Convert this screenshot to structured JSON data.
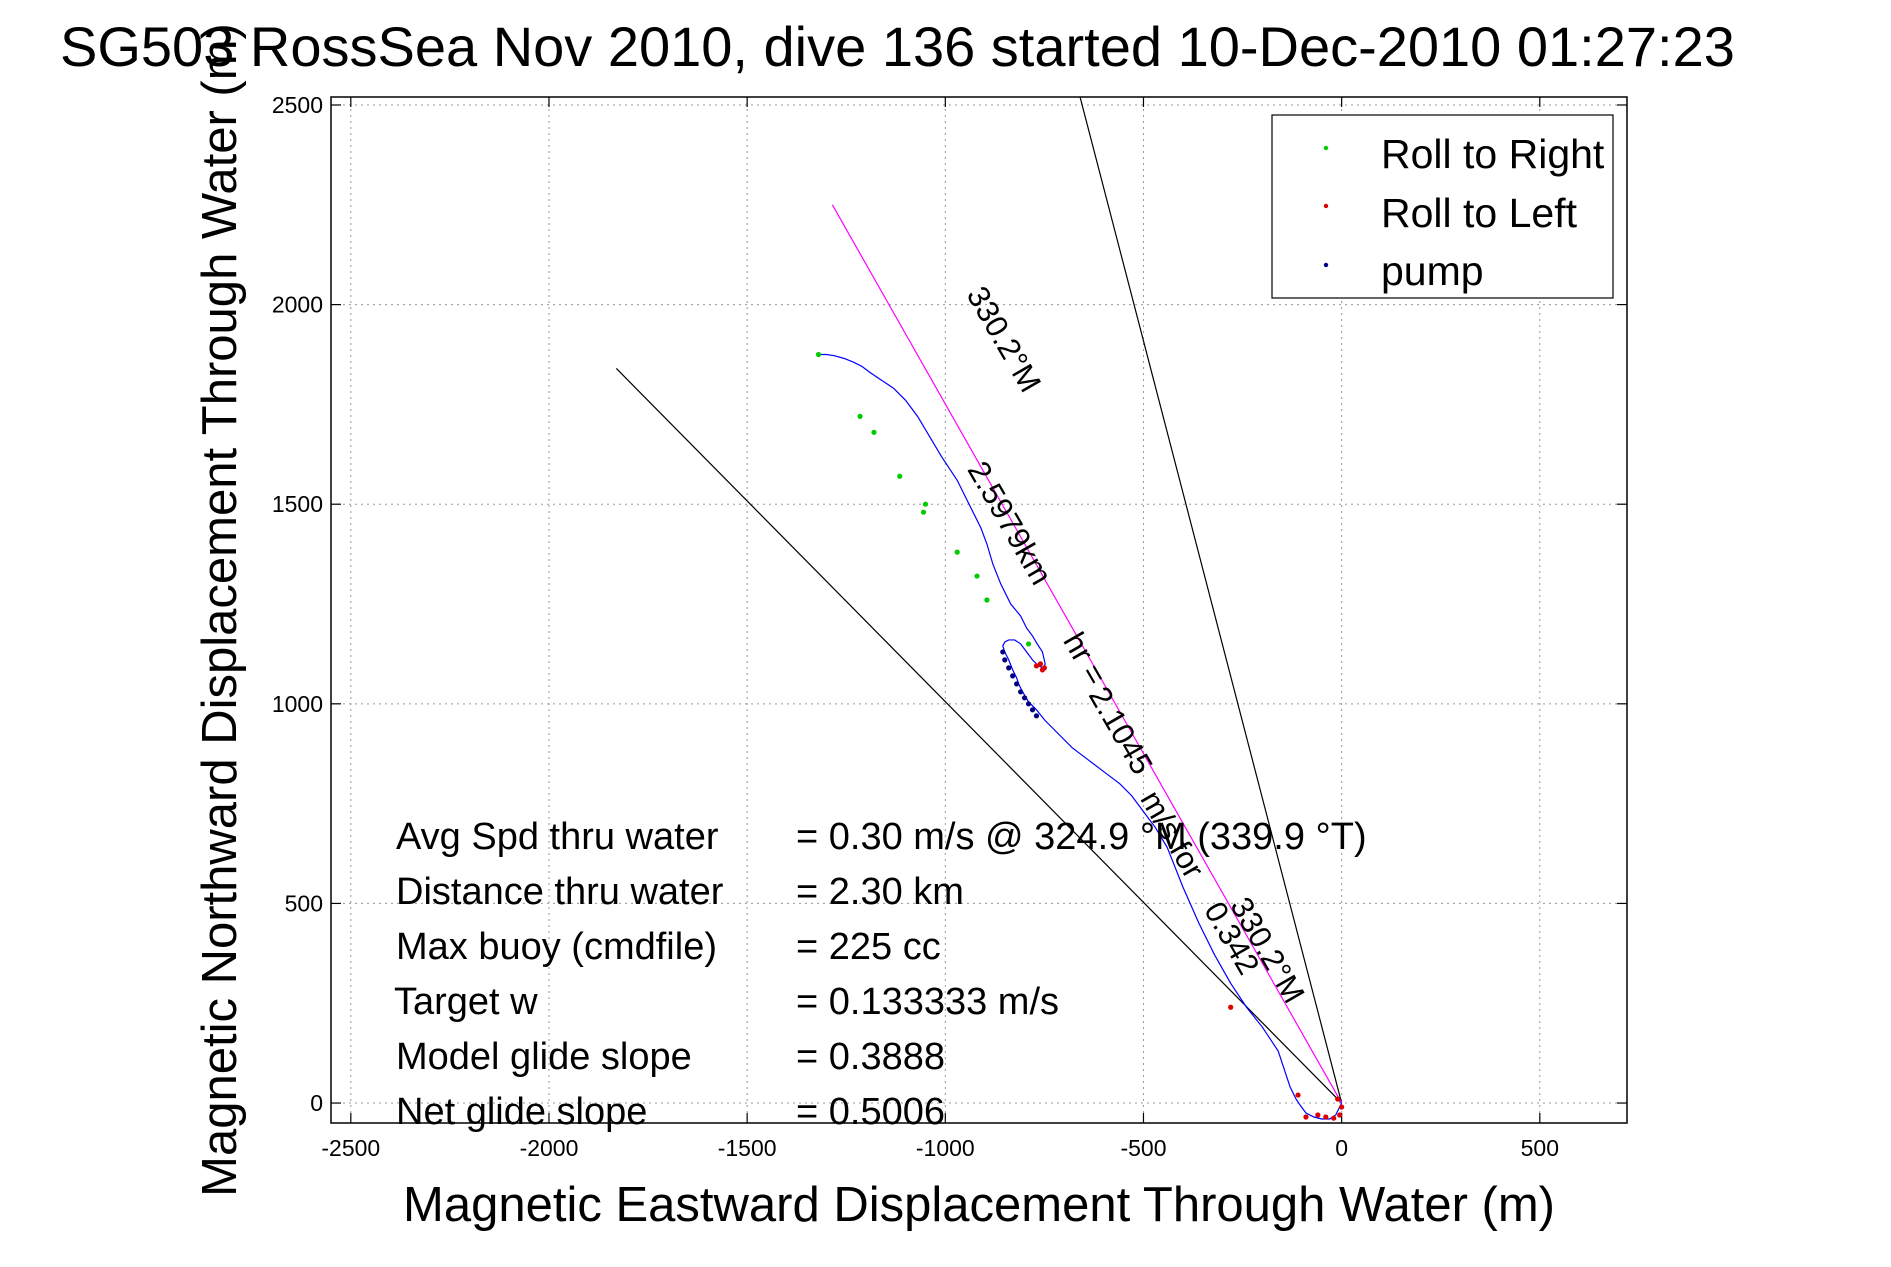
{
  "chart_data": {
    "type": "line",
    "title": "SG503 RossSea Nov 2010, dive 136 started 10-Dec-2010 01:27:23",
    "xlabel": "Magnetic Eastward Displacement Through Water (m)",
    "ylabel": "Magnetic Northward Displacement Through Water (m)",
    "xlim": [
      -2550,
      720
    ],
    "ylim": [
      -50,
      2520
    ],
    "x_ticks": [
      -2500,
      -2000,
      -1500,
      -1000,
      -500,
      0,
      500
    ],
    "y_ticks": [
      0,
      500,
      1000,
      1500,
      2000,
      2500
    ],
    "x_tick_labels": [
      "-2500",
      "-2000",
      "-1500",
      "-1000",
      "-500",
      "0",
      "500"
    ],
    "y_tick_labels": [
      "0",
      "500",
      "1000",
      "1500",
      "2000",
      "2500"
    ],
    "grid": true,
    "legend_position": "top-right",
    "legend": [
      {
        "label": "Roll to Right",
        "color": "#00cc00"
      },
      {
        "label": "Roll to Left",
        "color": "#dd0000"
      },
      {
        "label": "pump",
        "color": "#000080"
      }
    ],
    "track": {
      "color": "#0000ff",
      "x": [
        0,
        -15,
        -30,
        -50,
        -70,
        -90,
        -105,
        -115,
        -130,
        -160,
        -200,
        -240,
        -280,
        -320,
        -360,
        -400,
        -440,
        -470,
        -500,
        -530,
        -560,
        -600,
        -640,
        -680,
        -720,
        -750,
        -770,
        -790,
        -805,
        -815,
        -820,
        -830,
        -840,
        -850,
        -855,
        -850,
        -840,
        -825,
        -810,
        -795,
        -780,
        -765,
        -752,
        -748,
        -755,
        -768,
        -780,
        -795,
        -810,
        -835,
        -860,
        -880,
        -895,
        -910,
        -930,
        -950,
        -970,
        -990,
        -1010,
        -1040,
        -1070,
        -1100,
        -1130,
        -1160,
        -1190,
        -1210,
        -1230,
        -1255,
        -1280,
        -1300,
        -1320
      ],
      "y": [
        0,
        -30,
        -40,
        -40,
        -35,
        -25,
        -5,
        10,
        40,
        130,
        190,
        240,
        300,
        370,
        450,
        540,
        640,
        690,
        730,
        770,
        800,
        830,
        860,
        890,
        930,
        960,
        985,
        1005,
        1030,
        1050,
        1065,
        1085,
        1110,
        1130,
        1145,
        1155,
        1160,
        1160,
        1150,
        1130,
        1110,
        1095,
        1090,
        1100,
        1130,
        1150,
        1170,
        1190,
        1220,
        1250,
        1300,
        1350,
        1400,
        1440,
        1480,
        1520,
        1560,
        1590,
        1620,
        1670,
        1720,
        1760,
        1790,
        1810,
        1830,
        1845,
        1855,
        1865,
        1872,
        1875,
        1875
      ]
    },
    "roll_right_points": {
      "x": [
        -1320,
        -1215,
        -1115,
        -1055,
        -970,
        -895,
        -1180,
        -1050,
        -920,
        -790
      ],
      "y": [
        1875,
        1720,
        1570,
        1480,
        1380,
        1260,
        1680,
        1500,
        1320,
        1150
      ]
    },
    "roll_left_points": {
      "x": [
        -760,
        -750,
        -755,
        -770,
        -280,
        -110,
        -40,
        -20,
        -5,
        0,
        -10,
        -60,
        -90
      ],
      "y": [
        1100,
        1090,
        1085,
        1095,
        240,
        20,
        -35,
        -38,
        -30,
        -10,
        10,
        -30,
        -35
      ]
    },
    "pump_points": {
      "x": [
        -855,
        -850,
        -840,
        -830,
        -820,
        -810,
        -800,
        -790,
        -780,
        -770
      ],
      "y": [
        1130,
        1110,
        1090,
        1070,
        1050,
        1030,
        1015,
        1000,
        985,
        970
      ]
    },
    "reference_lines": [
      {
        "color": "#000000",
        "x": [
          0,
          -660
        ],
        "y": [
          0,
          2520
        ]
      },
      {
        "color": "#000000",
        "x": [
          0,
          -1830
        ],
        "y": [
          0,
          1840
        ]
      },
      {
        "color": "#ff00ff",
        "x": [
          0,
          -1285
        ],
        "y": [
          0,
          2250
        ]
      }
    ],
    "course_labels": [
      {
        "text": "330.2°M",
        "x": -875,
        "y": 1900,
        "angle": 60
      },
      {
        "text": "2.5979km",
        "x": -860,
        "y": 1440,
        "angle": 60
      },
      {
        "text": "hr =",
        "x": -670,
        "y": 1100,
        "angle": 60
      },
      {
        "text": "2.1045",
        "x": -580,
        "y": 920,
        "angle": 60
      },
      {
        "text": "m/s for",
        "x": -450,
        "y": 660,
        "angle": 60
      },
      {
        "text": "0.342",
        "x": -300,
        "y": 400,
        "angle": 60
      },
      {
        "text": "330.2°M",
        "x": -210,
        "y": 370,
        "angle": 60
      }
    ],
    "stats": [
      {
        "label": "Avg Spd thru water",
        "value": "=  0.30 m/s @ 324.9 °M (339.9 °T)"
      },
      {
        "label": "Distance thru water",
        "value": "=  2.30 km"
      },
      {
        "label": "Max buoy (cmdfile)",
        "value": "= 225 cc"
      },
      {
        "label": "Target w",
        "value": "= 0.133333 m/s"
      },
      {
        "label": "Model glide slope",
        "value": "= 0.3888"
      },
      {
        "label": "Net glide slope",
        "value": "= 0.5006"
      }
    ]
  }
}
